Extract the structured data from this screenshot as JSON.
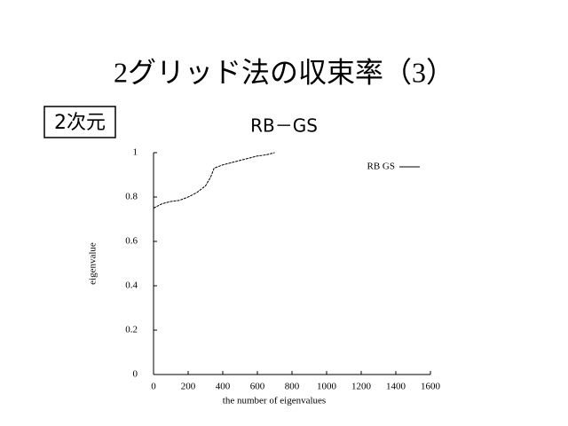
{
  "slide": {
    "title": "2グリッド法の収束率（3）",
    "badge": "2次元"
  },
  "chart_data": {
    "type": "line",
    "title": "RB－GS",
    "xlabel": "the number of eigenvalues",
    "ylabel": "eigenvalue",
    "xlim": [
      0,
      1600
    ],
    "ylim": [
      0,
      1
    ],
    "xticks": [
      0,
      200,
      400,
      600,
      800,
      1000,
      1200,
      1400,
      1600
    ],
    "yticks": [
      0,
      0.2,
      0.4,
      0.6,
      0.8,
      1
    ],
    "legend": "top-right",
    "series": [
      {
        "name": "RB GS",
        "color": "#000000",
        "x": [
          0,
          50,
          100,
          150,
          200,
          250,
          300,
          330,
          350,
          400,
          450,
          500,
          550,
          600,
          650,
          700
        ],
        "values": [
          0.75,
          0.77,
          0.78,
          0.785,
          0.8,
          0.82,
          0.85,
          0.89,
          0.93,
          0.945,
          0.955,
          0.965,
          0.975,
          0.985,
          0.99,
          1.0
        ]
      }
    ]
  }
}
